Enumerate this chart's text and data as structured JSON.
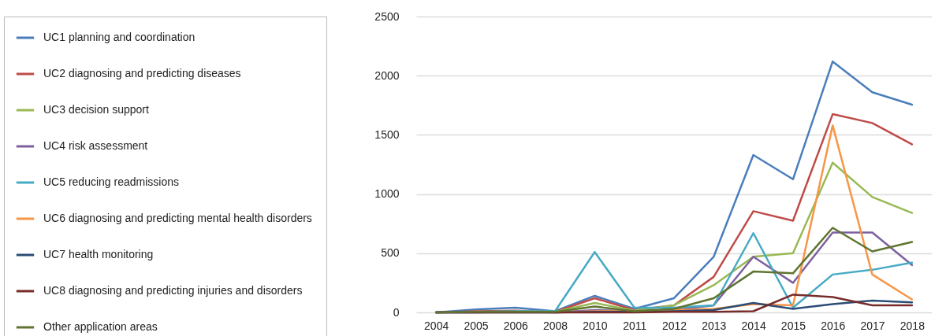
{
  "chart_data": {
    "type": "line",
    "categories": [
      "2004",
      "2005",
      "2006",
      "2008",
      "2010",
      "2011",
      "2012",
      "2013",
      "2014",
      "2015",
      "2016",
      "2017",
      "2018"
    ],
    "series": [
      {
        "name": "UC1  planning and coordination",
        "color": "#4a7ebb",
        "values": [
          0,
          25,
          40,
          10,
          140,
          30,
          120,
          470,
          1330,
          1125,
          2120,
          1860,
          1755
        ]
      },
      {
        "name": "UC2  diagnosing and predicting diseases",
        "color": "#be4b48",
        "values": [
          0,
          10,
          15,
          5,
          120,
          20,
          60,
          300,
          855,
          775,
          1675,
          1600,
          1420
        ]
      },
      {
        "name": "UC3  decision support",
        "color": "#98b954",
        "values": [
          null,
          null,
          10,
          5,
          80,
          15,
          60,
          230,
          470,
          500,
          1265,
          975,
          840
        ]
      },
      {
        "name": "UC4  risk assessment",
        "color": "#7d60a0",
        "values": [
          0,
          0,
          5,
          0,
          20,
          10,
          20,
          60,
          470,
          250,
          675,
          675,
          400
        ]
      },
      {
        "name": "UC5  reducing readmissions",
        "color": "#46aac5",
        "values": [
          0,
          5,
          10,
          10,
          510,
          40,
          40,
          60,
          670,
          40,
          320,
          360,
          420
        ]
      },
      {
        "name": "UC6  diagnosing and predicting mental health disorders",
        "color": "#f79646",
        "values": [
          null,
          null,
          null,
          0,
          10,
          10,
          20,
          30,
          70,
          60,
          1580,
          320,
          110
        ]
      },
      {
        "name": "UC7  health monitoring",
        "color": "#2c4d75",
        "values": [
          0,
          0,
          0,
          0,
          5,
          5,
          10,
          20,
          80,
          30,
          70,
          100,
          85
        ]
      },
      {
        "name": "UC8  diagnosing and predicting injuries and disorders",
        "color": "#772c2a",
        "values": [
          0,
          0,
          0,
          0,
          0,
          0,
          5,
          5,
          10,
          150,
          130,
          60,
          60
        ]
      },
      {
        "name": "Other application areas",
        "color": "#5f7530",
        "values": [
          0,
          5,
          5,
          5,
          50,
          10,
          30,
          120,
          345,
          330,
          715,
          515,
          595
        ]
      }
    ],
    "ylim": [
      0,
      2500
    ],
    "yticks": [
      0,
      500,
      1000,
      1500,
      2000,
      2500
    ],
    "grid": "y",
    "legend": "left",
    "marker": "none",
    "line_style": "solid"
  }
}
